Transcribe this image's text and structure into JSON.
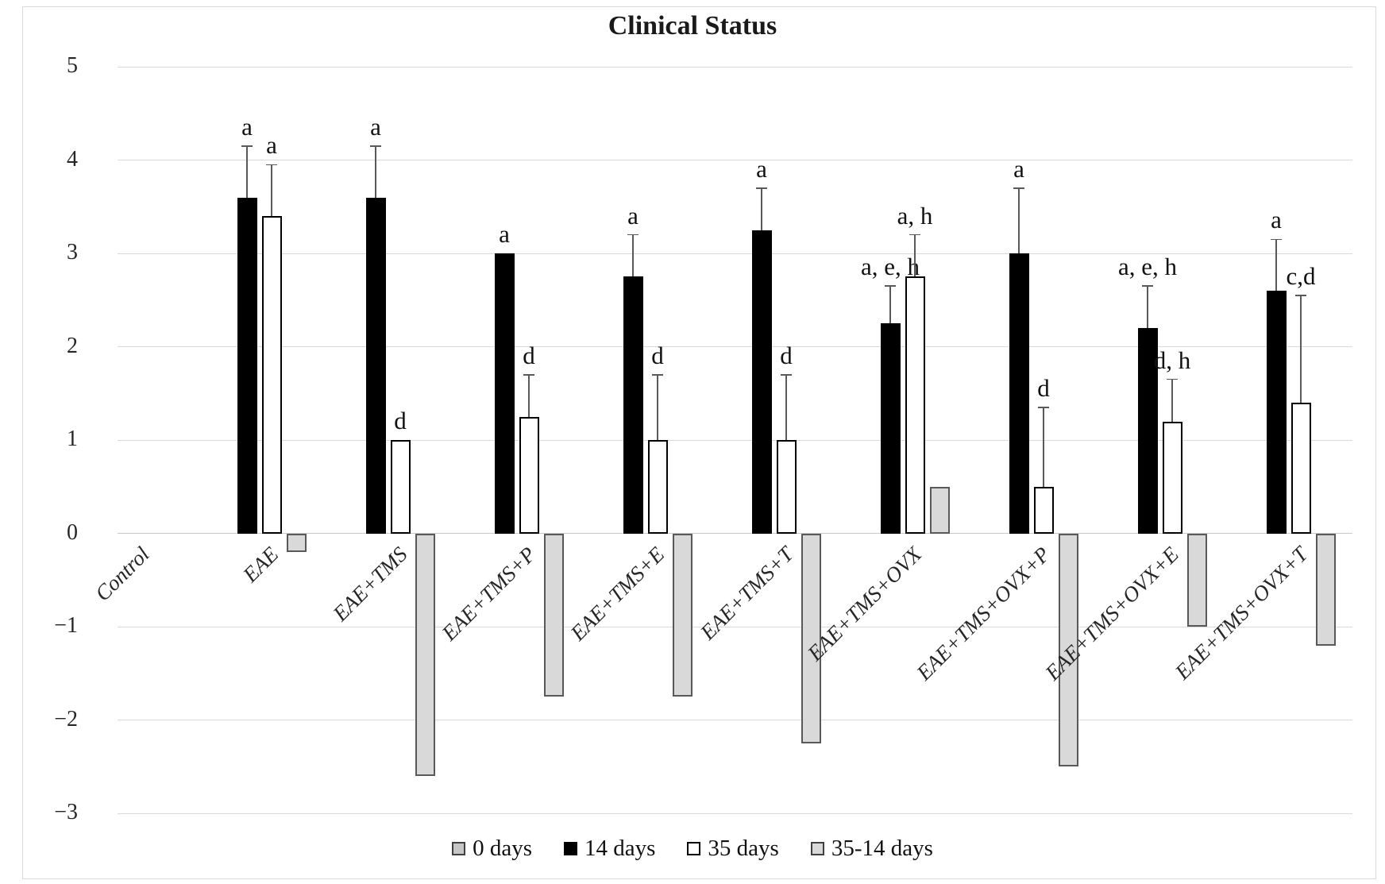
{
  "chart_data": {
    "type": "bar",
    "title": "Clinical Status",
    "xlabel": "",
    "ylabel": "",
    "ylim": [
      -3,
      5
    ],
    "yticks": [
      5,
      4,
      3,
      2,
      1,
      0,
      -1,
      -2,
      -3
    ],
    "grid": "horizontal",
    "legend_position": "bottom",
    "categories": [
      "Control",
      "EAE",
      "EAE+TMS",
      "EAE+TMS+P",
      "EAE+TMS+E",
      "EAE+TMS+T",
      "EAE+TMS+OVX",
      "EAE+TMS+OVX+P",
      "EAE+TMS+OVX+E",
      "EAE+TMS+OVX+T"
    ],
    "series": [
      {
        "name": "0 days",
        "values": [
          0,
          0,
          0,
          0,
          0,
          0,
          0,
          0,
          0,
          0
        ],
        "error_top": [
          null,
          null,
          null,
          null,
          null,
          null,
          null,
          null,
          null,
          null
        ],
        "labels": [
          null,
          null,
          null,
          null,
          null,
          null,
          null,
          null,
          null,
          null
        ],
        "fill": "#c6c6c6",
        "border": "#595959"
      },
      {
        "name": "14 days",
        "values": [
          0,
          3.6,
          3.6,
          3.0,
          2.75,
          3.25,
          2.25,
          3.0,
          2.2,
          2.6
        ],
        "error_top": [
          null,
          4.15,
          4.15,
          null,
          3.2,
          3.7,
          2.65,
          3.7,
          2.65,
          3.15
        ],
        "labels": [
          null,
          "a",
          "a",
          "a",
          "a",
          "a",
          "a, e, h",
          "a",
          "a, e, h",
          "a"
        ],
        "fill": "#000000",
        "border": "#000000"
      },
      {
        "name": "35 days",
        "values": [
          0,
          3.4,
          1.0,
          1.25,
          1.0,
          1.0,
          2.75,
          0.5,
          1.2,
          1.4
        ],
        "error_top": [
          null,
          3.95,
          null,
          1.7,
          1.7,
          1.7,
          3.2,
          1.35,
          1.65,
          2.55
        ],
        "labels": [
          null,
          "a",
          "d",
          "d",
          "d",
          "d",
          "a, h",
          "d",
          "d, h",
          "c,d"
        ],
        "fill": "#ffffff",
        "border": "#000000"
      },
      {
        "name": "35-14 days",
        "values": [
          0,
          -0.2,
          -2.6,
          -1.75,
          -1.75,
          -2.25,
          0.5,
          -2.5,
          -1.0,
          -1.2
        ],
        "error_top": [
          null,
          null,
          null,
          null,
          null,
          null,
          null,
          null,
          null,
          null
        ],
        "labels": [
          null,
          null,
          null,
          null,
          null,
          null,
          null,
          null,
          null,
          null
        ],
        "fill": "#d9d9d9",
        "border": "#595959"
      }
    ],
    "colors": {
      "gridline": "#d9d9d9",
      "whisker": "#595959",
      "text": "#111111"
    }
  }
}
